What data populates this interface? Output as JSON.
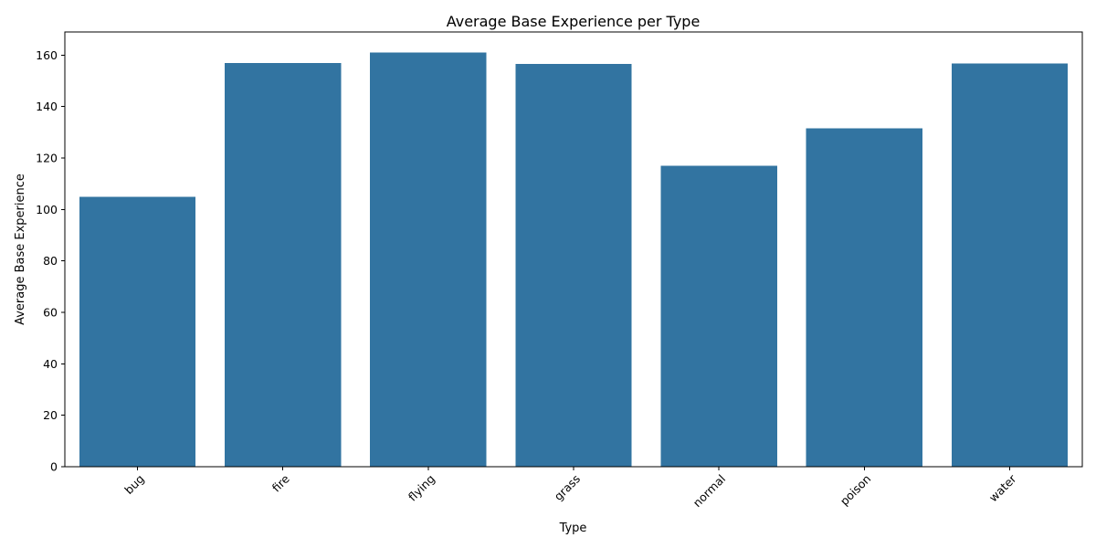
{
  "chart_data": {
    "type": "bar",
    "title": "Average Base Experience per Type",
    "xlabel": "Type",
    "ylabel": "Average Base Experience",
    "categories": [
      "bug",
      "fire",
      "flying",
      "grass",
      "normal",
      "poison",
      "water"
    ],
    "values": [
      105,
      157,
      161,
      156.5,
      117,
      131.5,
      156.8
    ],
    "ylim": [
      0,
      169
    ],
    "yticks": [
      0,
      20,
      40,
      60,
      80,
      100,
      120,
      140,
      160
    ],
    "x_tick_rotation_deg": 45,
    "grid": false,
    "legend": "none",
    "bar_color": "#3274a1"
  }
}
